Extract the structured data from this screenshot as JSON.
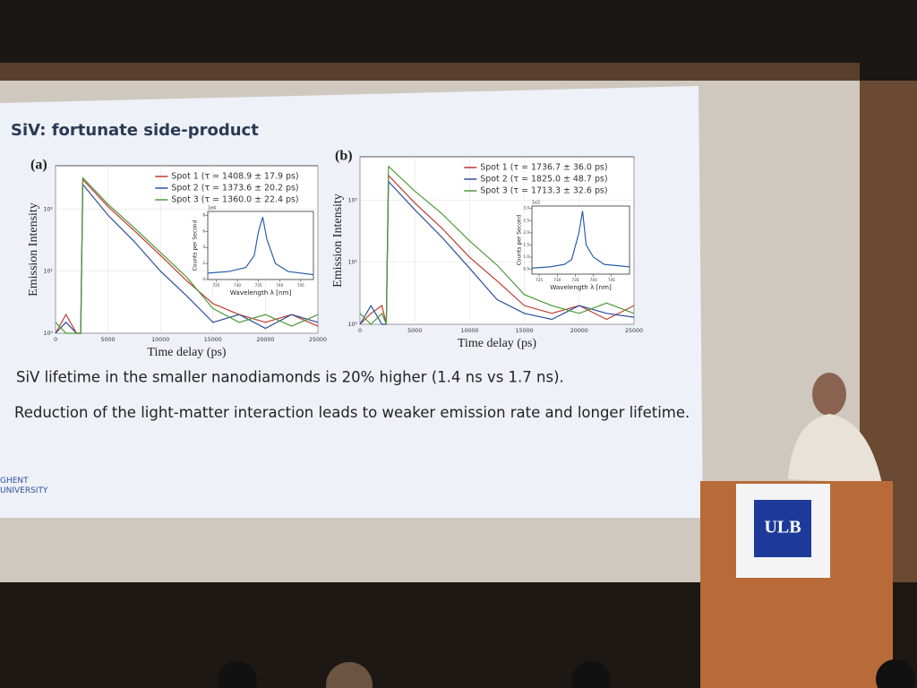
{
  "slide": {
    "title": "SiV: fortunate side-product",
    "line1": "SiV lifetime in the smaller nanodiamonds is 20% higher (1.4 ns vs 1.7 ns).",
    "line2": "Reduction of the light-matter interaction leads to weaker emission rate and longer lifetime.",
    "logo": "GHENT UNIVERSITY"
  },
  "podium": {
    "logo": "ULB"
  },
  "chart_data": [
    {
      "type": "line",
      "panel": "(a)",
      "x_label": "Time delay (ps)",
      "y_label": "Emission Intensity",
      "log_y": true,
      "grid": true,
      "xlim": [
        0,
        25000
      ],
      "xticks": [
        0,
        5000,
        10000,
        15000,
        20000,
        25000
      ],
      "ylim": [
        1,
        500
      ],
      "yticks": [
        {
          "value": 1,
          "label": "10⁰"
        },
        {
          "value": 10,
          "label": "10¹"
        },
        {
          "value": 100,
          "label": "10²"
        }
      ],
      "x": [
        0,
        1000,
        2000,
        2400,
        2600,
        5000,
        7500,
        10000,
        12500,
        15000,
        17500,
        20000,
        22500,
        25000
      ],
      "series": [
        {
          "name": "Spot 1 (τ = 1408.9 ± 17.9 ps)",
          "color": "#c0392b",
          "values": [
            1,
            2,
            1,
            1,
            300,
            110,
            45,
            18,
            7,
            3,
            2,
            1.5,
            2,
            1.3
          ]
        },
        {
          "name": "Spot 2 (τ = 1373.6 ± 20.2 ps)",
          "color": "#2c4f9e",
          "values": [
            1,
            1.5,
            1,
            1,
            250,
            80,
            30,
            10,
            4,
            1.5,
            2,
            1.2,
            2,
            1.5
          ]
        },
        {
          "name": "Spot 3 (τ = 1360.0 ± 22.4 ps)",
          "color": "#4e9a3a",
          "values": [
            1.5,
            1,
            1,
            1,
            320,
            120,
            50,
            20,
            8,
            2.5,
            1.5,
            2,
            1.3,
            2
          ]
        }
      ]
    },
    {
      "type": "line",
      "x_label": "Wavelength λ [nm]",
      "y_label": "Counts per Second",
      "y_scale_label": "1e4",
      "xlim": [
        723,
        748
      ],
      "xticks": [
        725,
        730,
        735,
        740,
        745
      ],
      "ylim": [
        0,
        8.5
      ],
      "yticks": [
        0,
        2,
        4,
        6,
        8
      ],
      "x": [
        723,
        728,
        732,
        734,
        735,
        736,
        737,
        739,
        742,
        748
      ],
      "series": [
        {
          "color": "#2c5fa8",
          "values": [
            0.8,
            1,
            1.5,
            3,
            6,
            7.8,
            5,
            2,
            1,
            0.6
          ]
        }
      ]
    },
    {
      "type": "line",
      "panel": "(b)",
      "x_label": "Time delay (ps)",
      "y_label": "Emission Intensity",
      "log_y": true,
      "grid": true,
      "xlim": [
        0,
        25000
      ],
      "xticks": [
        0,
        5000,
        10000,
        15000,
        20000,
        25000
      ],
      "ylim": [
        1,
        500
      ],
      "yticks": [
        {
          "value": 1,
          "label": "10⁰"
        },
        {
          "value": 10,
          "label": "10¹"
        },
        {
          "value": 100,
          "label": "10²"
        }
      ],
      "x": [
        0,
        1000,
        2000,
        2400,
        2600,
        5000,
        7500,
        10000,
        12500,
        15000,
        17500,
        20000,
        22500,
        25000
      ],
      "series": [
        {
          "name": "Spot 1 (τ = 1736.7 ± 36.0 ps)",
          "color": "#c0392b",
          "values": [
            1,
            1.5,
            2,
            1,
            250,
            90,
            35,
            12,
            5,
            2,
            1.5,
            2,
            1.2,
            2
          ]
        },
        {
          "name": "Spot 2 (τ = 1825.0 ± 48.7 ps)",
          "color": "#2c4f9e",
          "values": [
            1,
            2,
            1,
            1,
            200,
            70,
            25,
            8,
            2.5,
            1.5,
            1.2,
            2,
            1.5,
            1.3
          ]
        },
        {
          "name": "Spot 3 (τ = 1713.3 ± 32.6 ps)",
          "color": "#4e9a3a",
          "values": [
            1.5,
            1,
            1.5,
            1,
            350,
            140,
            60,
            22,
            9,
            3,
            2,
            1.5,
            2.2,
            1.5
          ]
        }
      ]
    },
    {
      "type": "line",
      "x_label": "Wavelength λ [nm]",
      "y_label": "Counts per Second",
      "y_scale_label": "1e2",
      "xlim": [
        723,
        750
      ],
      "xticks": [
        725,
        730,
        735,
        740,
        745
      ],
      "ylim": [
        0.3,
        3.1
      ],
      "yticks": [
        0.5,
        {
          "value": 1,
          "label": "1.0"
        },
        1.5,
        {
          "value": 2,
          "label": "2.0"
        },
        2.5,
        {
          "value": 3,
          "label": "3.0"
        }
      ],
      "x": [
        723,
        728,
        732,
        734,
        736,
        737,
        738,
        740,
        743,
        750
      ],
      "series": [
        {
          "color": "#2c5fa8",
          "values": [
            0.55,
            0.6,
            0.7,
            0.9,
            2,
            2.9,
            1.5,
            1,
            0.7,
            0.6
          ]
        }
      ]
    }
  ]
}
